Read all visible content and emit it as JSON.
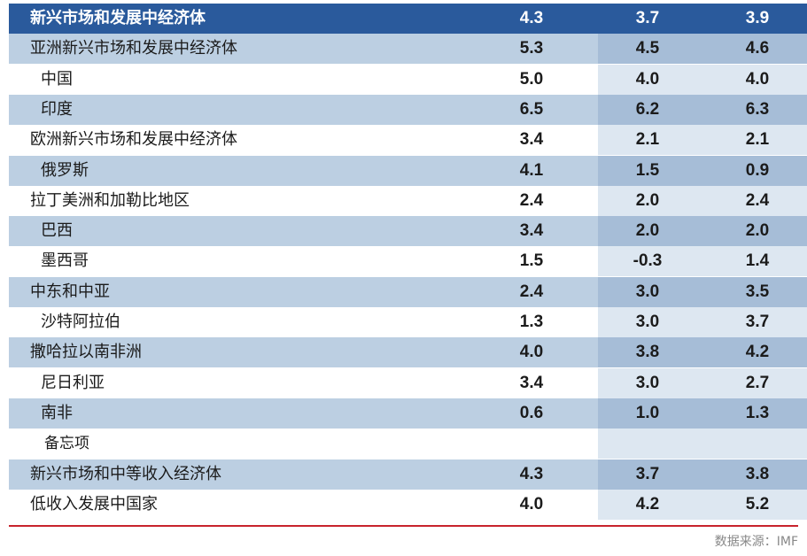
{
  "rows": [
    {
      "label": "新兴市场和发展中经济体",
      "v": [
        "4.3",
        "3.7",
        "3.9"
      ],
      "style": "header",
      "indent": 0
    },
    {
      "label": "亚洲新兴市场和发展中经济体",
      "v": [
        "5.3",
        "4.5",
        "4.6"
      ],
      "style": "blue",
      "indent": 0
    },
    {
      "label": "中国",
      "v": [
        "5.0",
        "4.0",
        "4.0"
      ],
      "style": "light",
      "indent": 1
    },
    {
      "label": "印度",
      "v": [
        "6.5",
        "6.2",
        "6.3"
      ],
      "style": "blue",
      "indent": 1
    },
    {
      "label": "欧洲新兴市场和发展中经济体",
      "v": [
        "3.4",
        "2.1",
        "2.1"
      ],
      "style": "light",
      "indent": 0
    },
    {
      "label": "俄罗斯",
      "v": [
        "4.1",
        "1.5",
        "0.9"
      ],
      "style": "blue",
      "indent": 1
    },
    {
      "label": "拉丁美洲和加勒比地区",
      "v": [
        "2.4",
        "2.0",
        "2.4"
      ],
      "style": "light",
      "indent": 0
    },
    {
      "label": "巴西",
      "v": [
        "3.4",
        "2.0",
        "2.0"
      ],
      "style": "blue",
      "indent": 1
    },
    {
      "label": "墨西哥",
      "v": [
        "1.5",
        "-0.3",
        "1.4"
      ],
      "style": "light",
      "indent": 1
    },
    {
      "label": "中东和中亚",
      "v": [
        "2.4",
        "3.0",
        "3.5"
      ],
      "style": "blue",
      "indent": 0
    },
    {
      "label": "沙特阿拉伯",
      "v": [
        "1.3",
        "3.0",
        "3.7"
      ],
      "style": "light",
      "indent": 1
    },
    {
      "label": "撒哈拉以南非洲",
      "v": [
        "4.0",
        "3.8",
        "4.2"
      ],
      "style": "blue",
      "indent": 0
    },
    {
      "label": "尼日利亚",
      "v": [
        "3.4",
        "3.0",
        "2.7"
      ],
      "style": "light",
      "indent": 1
    },
    {
      "label": "南非",
      "v": [
        "0.6",
        "1.0",
        "1.3"
      ],
      "style": "blue",
      "indent": 1
    },
    {
      "label": "备忘项",
      "v": [
        "",
        "",
        ""
      ],
      "style": "light",
      "indent": 2
    },
    {
      "label": "新兴市场和中等收入经济体",
      "v": [
        "4.3",
        "3.7",
        "3.8"
      ],
      "style": "blue",
      "indent": 0
    },
    {
      "label": "低收入发展中国家",
      "v": [
        "4.0",
        "4.2",
        "5.2"
      ],
      "style": "light",
      "indent": 0
    }
  ],
  "footer": {
    "source": "数据来源：IMF"
  },
  "colors": {
    "header_bg": "#2a5a9c",
    "blue_row": "#bccfe2",
    "blue_row_col3": "#a6bdd7",
    "light_row_col3": "#dde7f1",
    "divider": "#c8232c"
  }
}
